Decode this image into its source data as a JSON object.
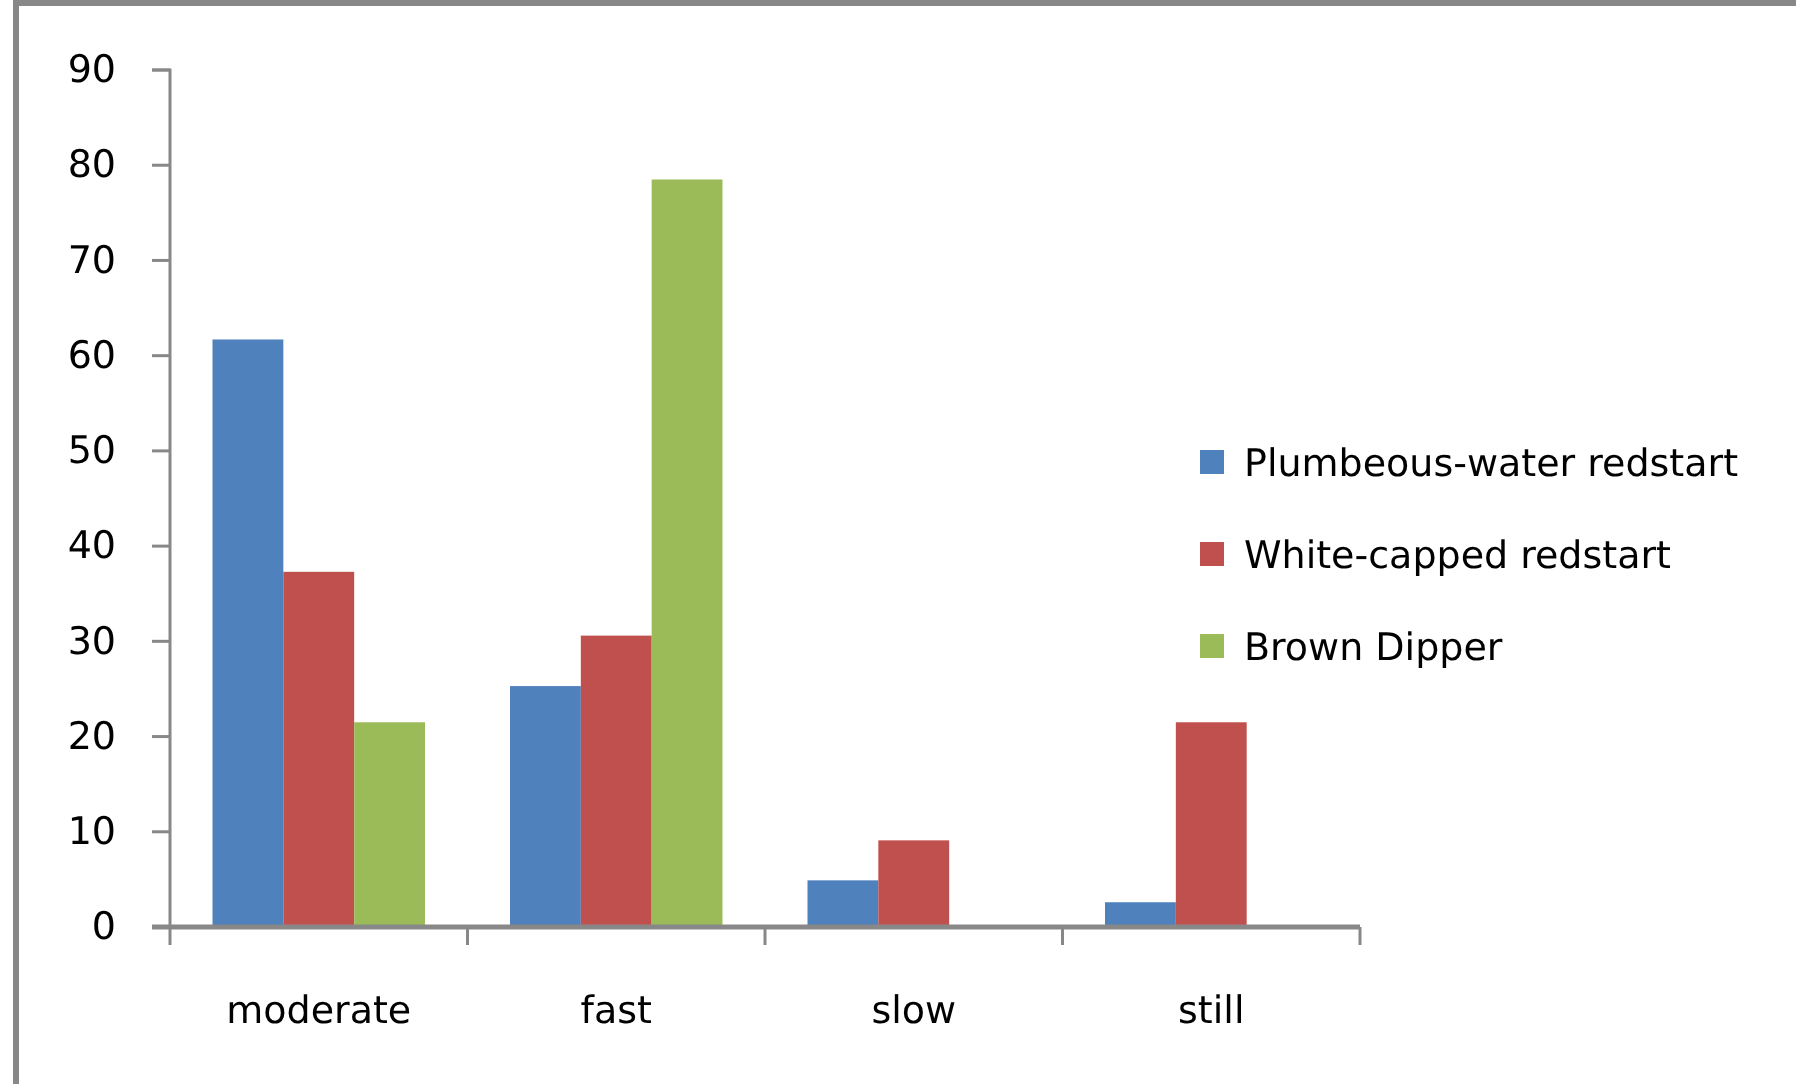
{
  "chart_data": {
    "type": "bar",
    "categories": [
      "moderate",
      "fast",
      "slow",
      "still"
    ],
    "series": [
      {
        "name": "Plumbeous-water redstart",
        "color": "#4f81bd",
        "values": [
          61.7,
          25.3,
          4.9,
          2.6
        ]
      },
      {
        "name": "White-capped redstart",
        "color": "#c0504d",
        "values": [
          37.3,
          30.6,
          9.1,
          21.5
        ]
      },
      {
        "name": "Brown Dipper",
        "color": "#9bbb59",
        "values": [
          21.5,
          78.5,
          null,
          null
        ]
      }
    ],
    "ylim": [
      0,
      90
    ],
    "yticks": [
      0,
      10,
      20,
      30,
      40,
      50,
      60,
      70,
      80,
      90
    ],
    "grid": false,
    "legend": "right"
  }
}
